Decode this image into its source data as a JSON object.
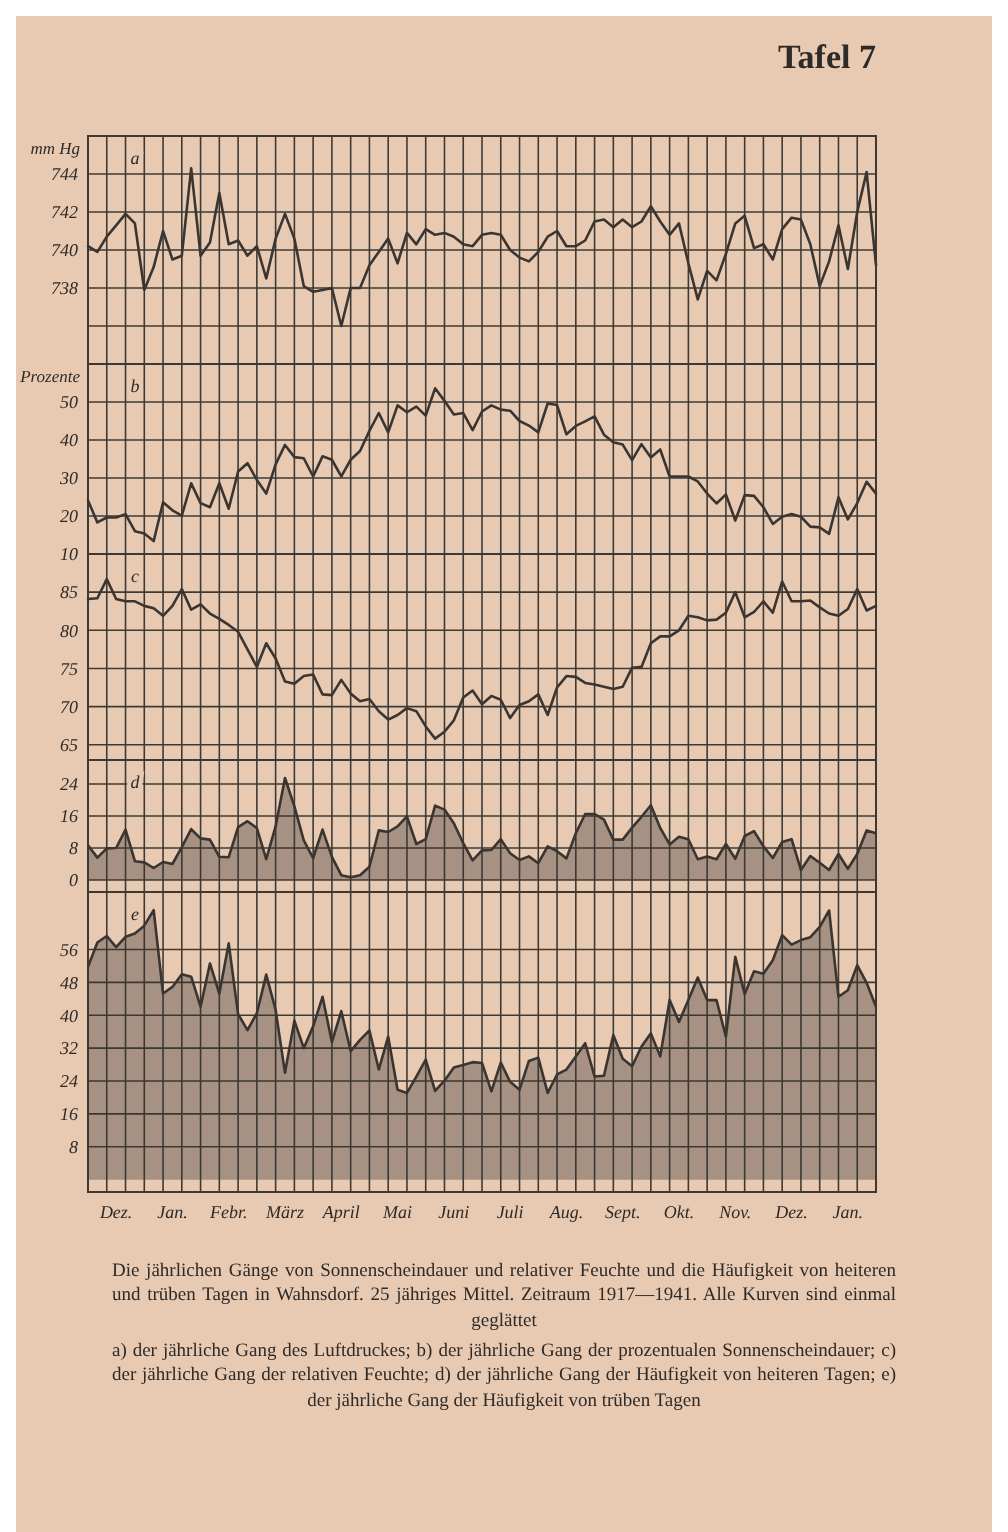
{
  "chart_data": [
    {
      "type": "line",
      "title": "Tafel 7",
      "ylabel": "mm Hg",
      "annotations": [
        "a"
      ],
      "color": "#3b3531",
      "grid": true,
      "tick_labels": "y",
      "ylim": [
        734,
        746
      ],
      "yticks": [
        {
          "value": 746,
          "label": null
        },
        744,
        742,
        740,
        738,
        {
          "value": 736,
          "label": null
        }
      ],
      "values": [
        740.2,
        739.9,
        740.7,
        741.3,
        741.9,
        741.4,
        737.9,
        739.1,
        741.0,
        739.5,
        739.7,
        744.3,
        739.7,
        740.4,
        743.0,
        740.3,
        740.5,
        739.7,
        740.2,
        738.5,
        740.6,
        741.9,
        740.6,
        738.1,
        737.8,
        737.9,
        738.0,
        736.0,
        738.0,
        738.0,
        739.2,
        739.9,
        740.6,
        739.3,
        740.9,
        740.3,
        741.1,
        740.8,
        740.9,
        740.7,
        740.3,
        740.2,
        740.8,
        740.9,
        740.8,
        740.0,
        739.6,
        739.4,
        739.9,
        740.7,
        741.0,
        740.2,
        740.2,
        740.5,
        741.5,
        741.6,
        741.2,
        741.6,
        741.2,
        741.5,
        742.3,
        741.5,
        740.8,
        741.4,
        739.3,
        737.4,
        738.9,
        738.4,
        739.8,
        741.4,
        741.8,
        740.1,
        740.3,
        739.5,
        741.1,
        741.7,
        741.6,
        740.3,
        738.1,
        739.4,
        741.3,
        739.0,
        742.0,
        744.1,
        739.2
      ]
    },
    {
      "type": "line",
      "ylabel": "Prozente",
      "annotations": [
        "b"
      ],
      "color": "#3b3531",
      "grid": true,
      "tick_labels": "y",
      "ylim": [
        10,
        60
      ],
      "yticks": [
        50,
        40,
        30,
        20,
        10
      ],
      "values": [
        24.1,
        18.3,
        19.6,
        19.6,
        20.5,
        16.0,
        15.4,
        13.4,
        23.6,
        21.5,
        20.1,
        28.6,
        23.4,
        22.3,
        28.6,
        21.9,
        31.7,
        33.9,
        29.5,
        25.9,
        33.6,
        38.7,
        35.5,
        35.2,
        30.4,
        35.7,
        34.8,
        30.4,
        34.8,
        37.1,
        42.4,
        47.1,
        42.0,
        49.1,
        47.3,
        48.8,
        46.4,
        53.6,
        50.3,
        46.7,
        47.1,
        42.6,
        47.5,
        49.1,
        48.0,
        47.7,
        45.0,
        43.8,
        42.0,
        49.6,
        49.2,
        41.5,
        43.7,
        44.9,
        46.2,
        41.4,
        39.4,
        38.8,
        34.7,
        38.9,
        35.4,
        37.5,
        30.4,
        30.4,
        30.4,
        29.1,
        25.9,
        23.3,
        25.7,
        18.8,
        25.5,
        25.3,
        22.3,
        17.9,
        19.8,
        20.5,
        19.8,
        17.2,
        17.0,
        15.3,
        24.9,
        19.1,
        23.4,
        29.0,
        25.9
      ]
    },
    {
      "type": "line",
      "annotations": [
        "c"
      ],
      "color": "#3b3531",
      "grid": true,
      "tick_labels": "y",
      "ylim": [
        63,
        90
      ],
      "yticks": [
        85,
        80,
        75,
        70,
        65
      ],
      "values": [
        84.1,
        84.2,
        86.7,
        84.1,
        83.8,
        83.8,
        83.2,
        82.9,
        81.9,
        83.2,
        85.4,
        82.7,
        83.4,
        82.2,
        81.5,
        80.7,
        79.8,
        77.5,
        75.2,
        78.3,
        76.3,
        73.3,
        73.0,
        74.0,
        74.2,
        71.6,
        71.5,
        73.5,
        71.7,
        70.7,
        71.0,
        69.4,
        68.3,
        68.9,
        69.8,
        69.4,
        67.4,
        65.8,
        66.7,
        68.2,
        71.2,
        72.1,
        70.3,
        71.4,
        70.9,
        68.5,
        70.2,
        70.7,
        71.6,
        68.9,
        72.5,
        74.0,
        73.9,
        73.1,
        72.9,
        72.6,
        72.3,
        72.6,
        75.1,
        75.2,
        78.3,
        79.2,
        79.2,
        80.0,
        81.9,
        81.7,
        81.3,
        81.4,
        82.3,
        85.0,
        81.7,
        82.4,
        83.8,
        82.3,
        86.4,
        83.8,
        83.8,
        83.9,
        83.0,
        82.2,
        81.9,
        82.8,
        85.4,
        82.6,
        83.2
      ]
    },
    {
      "type": "area",
      "annotations": [
        "d"
      ],
      "color": "#3b3531",
      "grid": true,
      "tick_labels": "y",
      "ylim": [
        -3,
        30
      ],
      "yticks": [
        24,
        16,
        8,
        0
      ],
      "values": [
        8.7,
        5.6,
        7.9,
        8.0,
        12.6,
        4.7,
        4.4,
        3.0,
        4.5,
        4.0,
        8.2,
        12.7,
        10.4,
        10.1,
        5.8,
        5.7,
        13.2,
        14.7,
        13.0,
        5.2,
        13.4,
        25.5,
        18.4,
        9.9,
        5.5,
        12.6,
        5.8,
        1.2,
        0.7,
        1.2,
        3.3,
        12.4,
        12.0,
        13.4,
        15.9,
        9.0,
        10.2,
        18.6,
        17.6,
        14.2,
        9.2,
        4.9,
        7.4,
        7.5,
        10.2,
        6.7,
        5.0,
        5.9,
        4.2,
        8.4,
        7.2,
        5.4,
        11.7,
        16.5,
        16.5,
        15.1,
        10.1,
        10.1,
        13.1,
        15.8,
        18.7,
        13.0,
        8.9,
        10.8,
        10.2,
        5.2,
        5.9,
        5.2,
        9.0,
        5.3,
        11.0,
        12.2,
        8.4,
        5.5,
        9.5,
        10.2,
        2.5,
        6.0,
        4.3,
        2.5,
        6.5,
        2.8,
        6.5,
        12.4,
        11.7
      ]
    },
    {
      "type": "area",
      "annotations": [
        "e",
        "Die jährlichen Gänge von Sonnenscheindauer und relativer Feuchte und die Häufigkeit von heiteren und trüben Tagen in Wahnsdorf. 25 jähriges Mittel. Zeitraum 1917—1941. Alle Kurven sind einmal geglättet",
        "a) der jährliche Gang des Luftdruckes; b) der jährliche Gang der prozentualen Sonnenscheindauer; c) der jährliche Gang der relativen Feuchte; d) der jährliche Gang der Häufigkeit von heiteren Tagen; e) der jährliche Gang der Häufigkeit von trüben Tagen"
      ],
      "color": "#3b3531",
      "grid": true,
      "ylim": [
        -3,
        70
      ],
      "yticks": [
        56,
        48,
        40,
        32,
        24,
        16,
        8
      ],
      "categories": [
        null,
        null,
        null,
        "Dez.",
        null,
        null,
        null,
        null,
        null,
        "Jan.",
        null,
        null,
        null,
        null,
        null,
        "Febr.",
        null,
        null,
        null,
        null,
        null,
        "März",
        null,
        null,
        null,
        null,
        null,
        "April",
        null,
        null,
        null,
        null,
        null,
        "Mai",
        null,
        null,
        null,
        null,
        null,
        "Juni",
        null,
        null,
        null,
        null,
        null,
        "Juli",
        null,
        null,
        null,
        null,
        null,
        "Aug.",
        null,
        null,
        null,
        null,
        null,
        "Sept.",
        null,
        null,
        null,
        null,
        null,
        "Okt.",
        null,
        null,
        null,
        null,
        null,
        "Nov.",
        null,
        null,
        null,
        null,
        null,
        "Dez.",
        null,
        null,
        null,
        null,
        null,
        "Jan.",
        null,
        null,
        null
      ],
      "values": [
        51.8,
        57.7,
        59.3,
        56.6,
        59.1,
        59.9,
        61.8,
        65.6,
        45.3,
        46.9,
        50.0,
        49.4,
        42.1,
        52.6,
        45.3,
        57.5,
        40.3,
        36.4,
        40.5,
        49.9,
        41.3,
        26.0,
        38.7,
        32.0,
        37.3,
        44.5,
        33.5,
        41.0,
        31.3,
        34.0,
        36.3,
        26.8,
        34.8,
        21.9,
        21.1,
        25.1,
        29.2,
        21.6,
        24.1,
        27.3,
        27.9,
        28.6,
        28.4,
        21.5,
        28.5,
        23.8,
        21.9,
        28.9,
        29.7,
        21.1,
        25.6,
        26.8,
        30.0,
        33.2,
        25.1,
        25.3,
        35.2,
        29.4,
        27.6,
        32.4,
        35.6,
        30.0,
        43.7,
        38.4,
        43.7,
        49.2,
        43.7,
        43.7,
        34.8,
        54.2,
        45.2,
        50.7,
        50.1,
        53.4,
        59.5,
        57.2,
        58.3,
        59.0,
        61.5,
        65.5,
        44.5,
        46.1,
        52.2,
        47.9,
        42.1
      ]
    }
  ]
}
